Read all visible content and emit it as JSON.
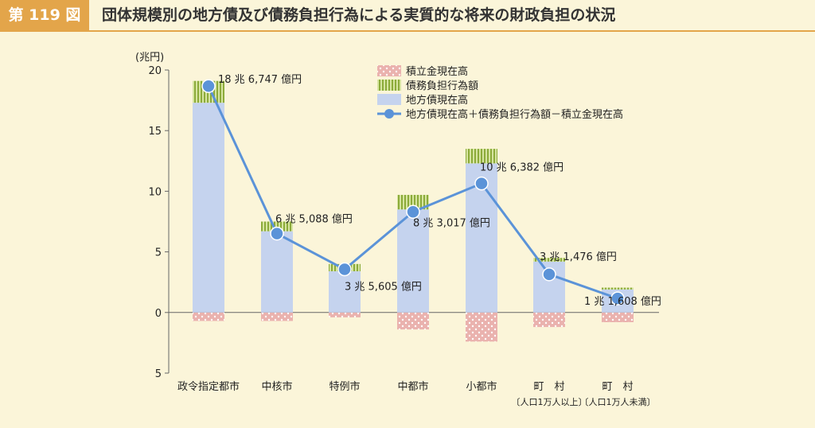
{
  "header": {
    "figure_number": "第 119 図",
    "title": "団体規模別の地方債及び債務負担行為による実質的な将来の財政負担の状況"
  },
  "colors": {
    "local_bond": "#c5d3ee",
    "debt_burden": "#a9c45a",
    "reserve": "#eab2ae",
    "line": "#5b93d8",
    "header_accent": "#e3a54a",
    "background": "#fbf5d9"
  },
  "chart_data": {
    "type": "bar",
    "stacked": true,
    "y_unit_label": "(兆円)",
    "ylim": [
      -5,
      20
    ],
    "yticks": [
      {
        "value": 20,
        "label": "20"
      },
      {
        "value": 15,
        "label": "15"
      },
      {
        "value": 10,
        "label": "10"
      },
      {
        "value": 5,
        "label": "5"
      },
      {
        "value": 0,
        "label": "0"
      },
      {
        "value": -5,
        "label": "5"
      }
    ],
    "categories": [
      {
        "line1": "政令指定都市",
        "line2": ""
      },
      {
        "line1": "中核市",
        "line2": ""
      },
      {
        "line1": "特例市",
        "line2": ""
      },
      {
        "line1": "中都市",
        "line2": ""
      },
      {
        "line1": "小都市",
        "line2": ""
      },
      {
        "line1": "町　村",
        "line2": "〔人口1万人以上〕"
      },
      {
        "line1": "町　村",
        "line2": "〔人口1万人未満〕"
      }
    ],
    "series": [
      {
        "name": "積立金現在高",
        "key": "reserve",
        "values": [
          -0.7,
          -0.7,
          -0.4,
          -1.4,
          -2.4,
          -1.2,
          -0.8
        ]
      },
      {
        "name": "債務負担行為額",
        "key": "debt_burden",
        "values": [
          1.8,
          0.8,
          0.6,
          1.2,
          1.2,
          0.3,
          0.15
        ]
      },
      {
        "name": "地方債現在高",
        "key": "local_bond",
        "values": [
          17.3,
          6.7,
          3.4,
          8.5,
          12.3,
          4.2,
          1.9
        ]
      },
      {
        "name": "地方債現在高＋債務負担行為額－積立金現在高",
        "key": "net",
        "type": "line",
        "values": [
          18.6747,
          6.5088,
          3.5605,
          8.3017,
          10.6382,
          3.1476,
          1.1608
        ]
      }
    ],
    "data_labels": [
      "18 兆 6,747 億円",
      "6 兆 5,088 億円",
      "3 兆 5,605 億円",
      "8 兆 3,017 億円",
      "10 兆 6,382 億円",
      "3 兆 1,476 億円",
      "1 兆 1,608 億円"
    ],
    "legend_position": "top-right"
  }
}
